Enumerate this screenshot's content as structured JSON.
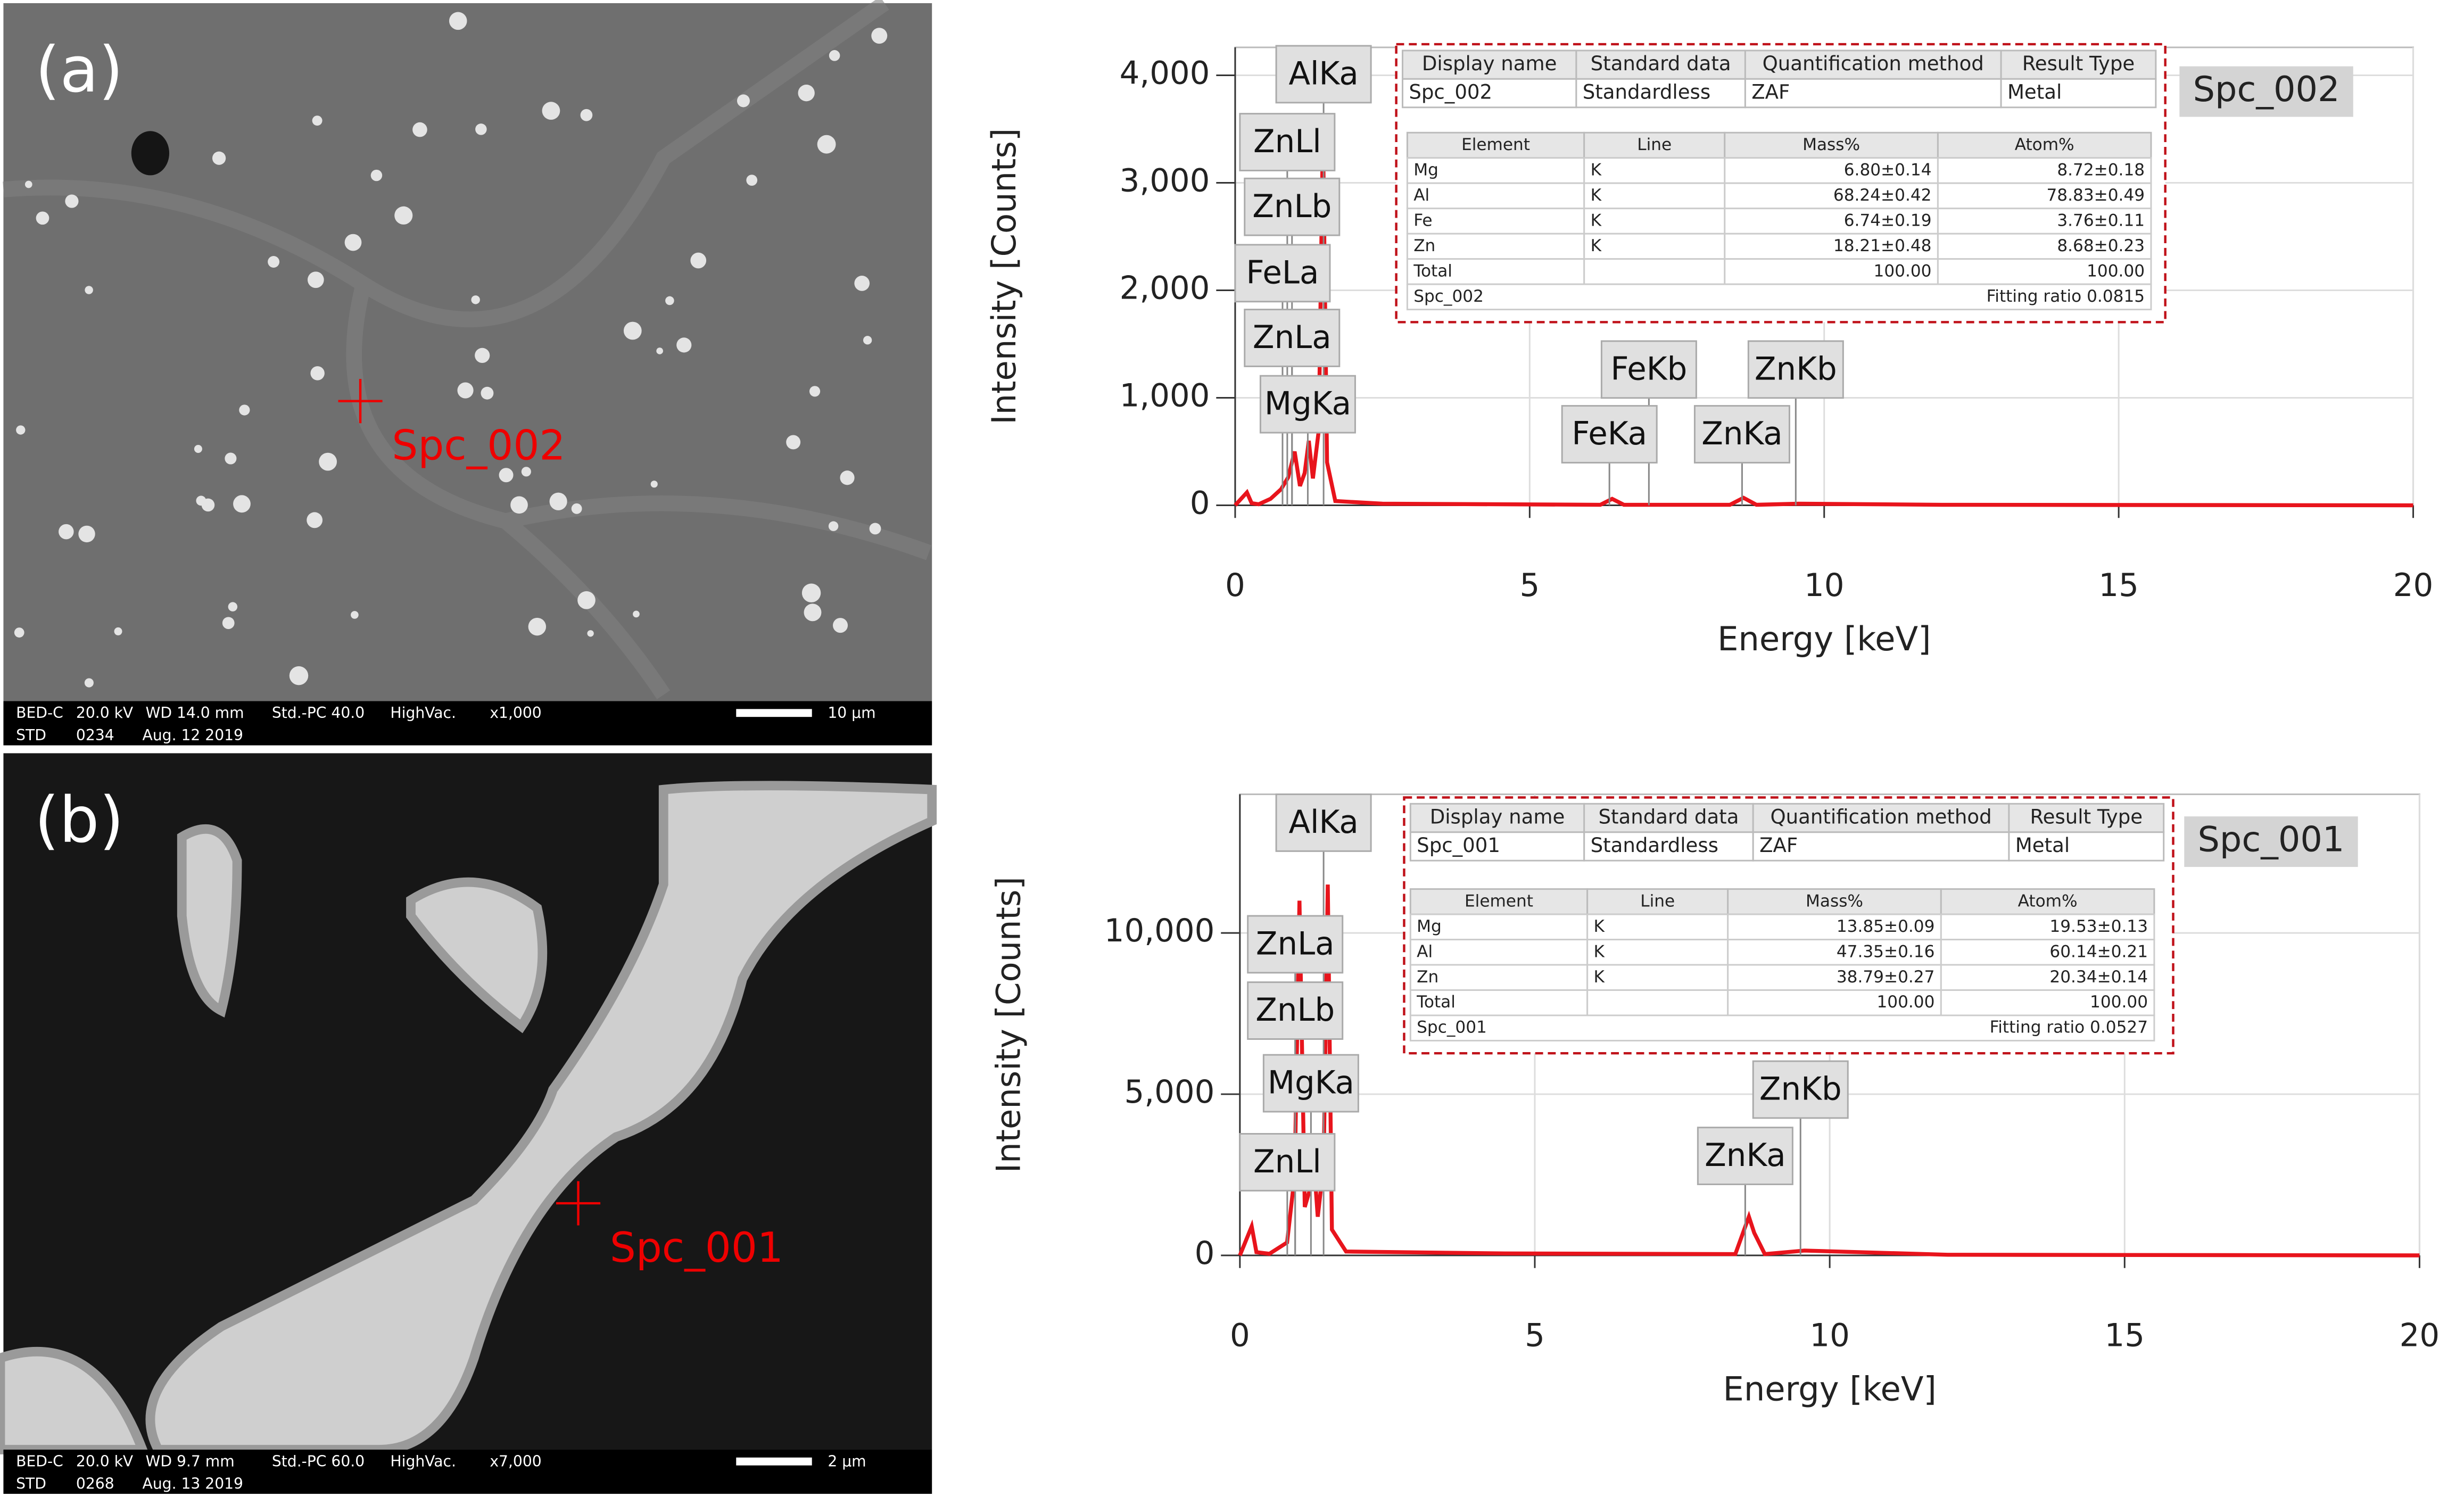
{
  "micrographs": [
    {
      "label": "(a)",
      "point": "Spc_002",
      "info": [
        "BED-C",
        "20.0 kV",
        "WD 14.0 mm",
        "Std.-PC 40.0",
        "HighVac.",
        "x1,000",
        "10 μm",
        "STD",
        "0234",
        "Aug. 12 2019"
      ]
    },
    {
      "label": "(b)",
      "point": "Spc_001",
      "info": [
        "BED-C",
        "20.0 kV",
        "WD 9.7 mm",
        "Std.-PC 60.0",
        "HighVac.",
        "x7,000",
        "2 μm",
        "STD",
        "0268",
        "Aug. 13 2019"
      ]
    }
  ],
  "chart_data": [
    {
      "type": "line",
      "x_label": "Energy [keV]",
      "y_label": "Intensity [Counts]",
      "badge": "Spc_002",
      "xlim": [
        0,
        20
      ],
      "xticks": [
        0,
        5,
        10,
        15,
        20
      ],
      "ylim": [
        0,
        4260
      ],
      "yticks": [
        0,
        {
          "value": 1000,
          "label": "1,000"
        },
        {
          "value": 2000,
          "label": "2,000"
        },
        {
          "value": 3000,
          "label": "3,000"
        },
        {
          "value": 4000,
          "label": "4,000"
        }
      ],
      "grid": true,
      "color": "#e8141c",
      "x": [
        0,
        0.2,
        0.28,
        0.4,
        0.6,
        0.78,
        0.9,
        1.01,
        1.1,
        1.18,
        1.25,
        1.32,
        1.42,
        1.49,
        1.56,
        1.7,
        2.5,
        6.2,
        6.4,
        6.6,
        8.4,
        8.63,
        8.85,
        9.57,
        12,
        20
      ],
      "values": [
        0,
        120,
        20,
        10,
        60,
        150,
        260,
        500,
        180,
        300,
        600,
        250,
        700,
        3500,
        400,
        40,
        15,
        5,
        60,
        5,
        5,
        70,
        5,
        15,
        5,
        0
      ],
      "peaks": [
        "AlKa",
        "ZnLl",
        "ZnLb",
        "FeLa",
        "ZnLa",
        "MgKa",
        "FeKb",
        "FeKa",
        "ZnKb",
        "ZnKa"
      ],
      "result_table": {
        "columns": [
          "Display name",
          "Standard data",
          "Quantification method",
          "Result Type"
        ],
        "rows": [
          [
            "Spc_002",
            "Standardless",
            "ZAF",
            "Metal"
          ]
        ]
      },
      "element_table": {
        "columns": [
          "Element",
          "Line",
          "Mass%",
          "Atom%"
        ],
        "rows": [
          [
            "Mg",
            "K",
            "6.80±0.14",
            "8.72±0.18"
          ],
          [
            "Al",
            "K",
            "68.24±0.42",
            "78.83±0.49"
          ],
          [
            "Fe",
            "K",
            "6.74±0.19",
            "3.76±0.11"
          ],
          [
            "Zn",
            "K",
            "18.21±0.48",
            "8.68±0.23"
          ],
          [
            "Total",
            "",
            "100.00",
            "100.00"
          ]
        ],
        "footer": [
          "Spc_002",
          "Fitting ratio 0.0815"
        ]
      }
    },
    {
      "type": "line",
      "x_label": "Energy [keV]",
      "y_label": "Intensity [Counts]",
      "badge": "Spc_001",
      "xlim": [
        0,
        20
      ],
      "xticks": [
        0,
        5,
        10,
        15,
        20
      ],
      "ylim": [
        0,
        14300
      ],
      "yticks": [
        0,
        {
          "value": 5000,
          "label": "5,000"
        },
        {
          "value": 10000,
          "label": "10,000"
        }
      ],
      "grid": true,
      "color": "#e8141c",
      "x": [
        0,
        0.2,
        0.28,
        0.5,
        0.8,
        0.93,
        1.01,
        1.1,
        1.18,
        1.25,
        1.32,
        1.42,
        1.49,
        1.56,
        1.8,
        4.5,
        8.4,
        8.55,
        8.63,
        8.72,
        8.9,
        9.57,
        12,
        20
      ],
      "values": [
        0,
        900,
        100,
        50,
        400,
        2500,
        11000,
        1500,
        2000,
        3000,
        1200,
        2800,
        11500,
        800,
        120,
        60,
        40,
        800,
        1200,
        700,
        40,
        150,
        20,
        0
      ],
      "peaks": [
        "AlKa",
        "ZnLa",
        "ZnLb",
        "MgKa",
        "ZnLl",
        "ZnKb",
        "ZnKa"
      ],
      "result_table": {
        "columns": [
          "Display name",
          "Standard data",
          "Quantification method",
          "Result Type"
        ],
        "rows": [
          [
            "Spc_001",
            "Standardless",
            "ZAF",
            "Metal"
          ]
        ]
      },
      "element_table": {
        "columns": [
          "Element",
          "Line",
          "Mass%",
          "Atom%"
        ],
        "rows": [
          [
            "Mg",
            "K",
            "13.85±0.09",
            "19.53±0.13"
          ],
          [
            "Al",
            "K",
            "47.35±0.16",
            "60.14±0.21"
          ],
          [
            "Zn",
            "K",
            "38.79±0.27",
            "20.34±0.14"
          ],
          [
            "Total",
            "",
            "100.00",
            "100.00"
          ]
        ],
        "footer": [
          "Spc_001",
          "Fitting ratio 0.0527"
        ]
      }
    }
  ]
}
